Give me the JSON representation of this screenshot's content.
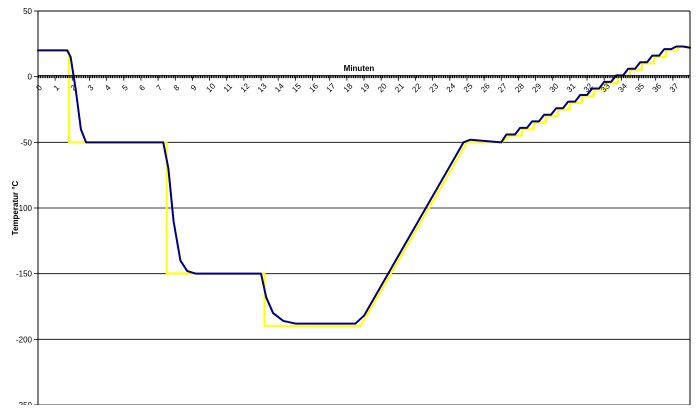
{
  "chart_data": {
    "type": "line",
    "title": "",
    "xlabel": "Minuten",
    "ylabel": "Temperatur °C",
    "xlim": [
      0,
      38
    ],
    "ylim": [
      -250,
      50
    ],
    "y_ticks": [
      "50",
      "0",
      "-50",
      "-100",
      "-150",
      "-200",
      "-250"
    ],
    "y_tick_values": [
      50,
      0,
      -50,
      -100,
      -150,
      -200,
      -250
    ],
    "x_ticks": [
      "0",
      "1",
      "2",
      "3",
      "4",
      "5",
      "6",
      "7",
      "8",
      "9",
      "10",
      "11",
      "12",
      "13",
      "14",
      "15",
      "16",
      "17",
      "18",
      "19",
      "20",
      "21",
      "22",
      "23",
      "24",
      "25",
      "26",
      "27",
      "28",
      "29",
      "30",
      "31",
      "32",
      "33",
      "34",
      "35",
      "36",
      "37"
    ],
    "grid": "horizontal",
    "series": [
      {
        "color": "#ffff00",
        "x": [
          0,
          1.8,
          1.8,
          7.5,
          7.5,
          13.2,
          13.2,
          18.8,
          25.0,
          27.0,
          27.5,
          28.2,
          28.2,
          28.9,
          28.9,
          29.6,
          29.6,
          30.3,
          30.3,
          31.0,
          31.0,
          31.7,
          31.7,
          32.4,
          32.4,
          33.1,
          33.1,
          33.8,
          33.8,
          34.5,
          34.5,
          35.2,
          35.2,
          35.9,
          35.9,
          36.6,
          36.6,
          37.3,
          37.3,
          38.0
        ],
        "y": [
          20,
          20,
          -50,
          -50,
          -150,
          -150,
          -190,
          -190,
          -50,
          -50,
          -45,
          -45,
          -40,
          -40,
          -35,
          -35,
          -30,
          -30,
          -25,
          -25,
          -20,
          -20,
          -15,
          -15,
          -10,
          -10,
          -5,
          -5,
          0,
          0,
          5,
          5,
          10,
          10,
          15,
          15,
          20,
          20,
          23,
          23
        ]
      },
      {
        "color": "#000080",
        "x": [
          0,
          1.7,
          1.9,
          2.2,
          2.5,
          2.8,
          3.5,
          7.3,
          7.6,
          7.9,
          8.3,
          8.7,
          9.2,
          13.0,
          13.3,
          13.7,
          14.3,
          15.0,
          16.5,
          18.5,
          19.0,
          24.8,
          25.2,
          27.0,
          27.3,
          27.8,
          28.1,
          28.5,
          28.8,
          29.2,
          29.5,
          29.9,
          30.2,
          30.6,
          30.9,
          31.3,
          31.6,
          32.0,
          32.3,
          32.7,
          33.0,
          33.4,
          33.7,
          34.1,
          34.4,
          34.8,
          35.1,
          35.5,
          35.8,
          36.2,
          36.5,
          36.9,
          37.2,
          37.6,
          38.0
        ],
        "y": [
          20,
          20,
          15,
          -10,
          -40,
          -50,
          -50,
          -50,
          -70,
          -110,
          -140,
          -148,
          -150,
          -150,
          -168,
          -180,
          -186,
          -188,
          -188,
          -188,
          -182,
          -50,
          -48,
          -50,
          -44,
          -44,
          -39,
          -39,
          -34,
          -34,
          -29,
          -29,
          -24,
          -24,
          -19,
          -19,
          -14,
          -14,
          -9,
          -9,
          -4,
          -4,
          1,
          1,
          6,
          6,
          11,
          11,
          16,
          16,
          21,
          21,
          23,
          23,
          22
        ]
      }
    ]
  }
}
